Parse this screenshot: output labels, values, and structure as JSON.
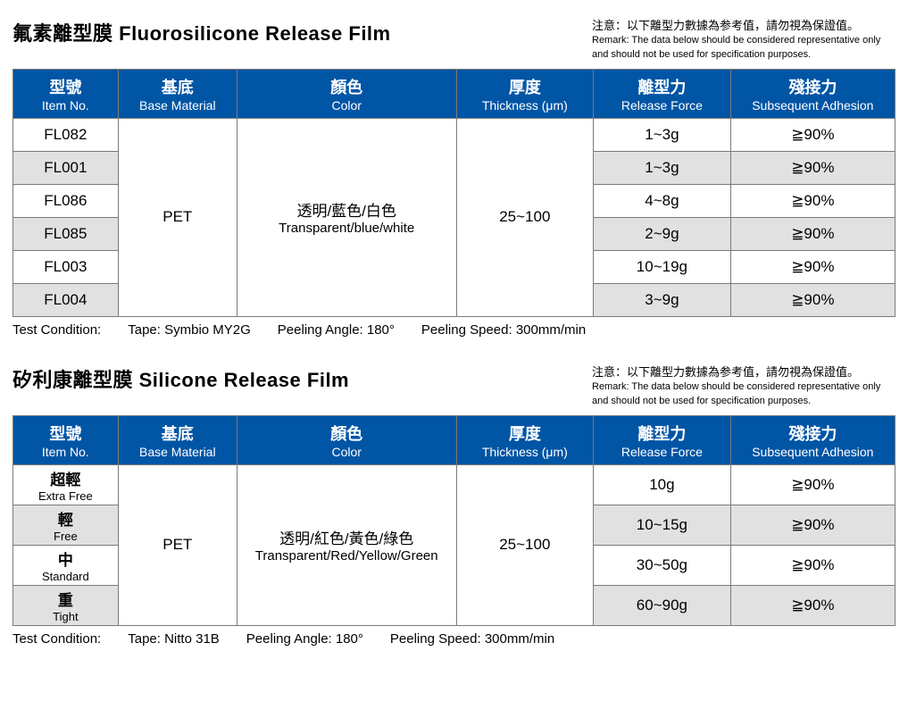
{
  "sections": [
    {
      "title_zh": "氟素離型膜",
      "title_en": "Fluorosilicone Release Film",
      "remark_zh": "注意：以下離型力數據為参考值，請勿視為保證值。",
      "remark_en": "Remark: The data below should be considered representative only and should not be used for specification purposes.",
      "columns": [
        {
          "zh": "型號",
          "en": "Item No."
        },
        {
          "zh": "基底",
          "en": "Base Material"
        },
        {
          "zh": "顏色",
          "en": "Color"
        },
        {
          "zh": "厚度",
          "en": "Thickness (μm)"
        },
        {
          "zh": "離型力",
          "en": "Release Force"
        },
        {
          "zh": "殘接力",
          "en": "Subsequent Adhesion"
        }
      ],
      "base_material": "PET",
      "color_zh": "透明/藍色/白色",
      "color_en": "Transparent/blue/white",
      "thickness": "25~100",
      "rows": [
        {
          "item": "FL082",
          "force": "1~3g",
          "adh": "≧90%",
          "alt": false
        },
        {
          "item": "FL001",
          "force": "1~3g",
          "adh": "≧90%",
          "alt": true
        },
        {
          "item": "FL086",
          "force": "4~8g",
          "adh": "≧90%",
          "alt": false
        },
        {
          "item": "FL085",
          "force": "2~9g",
          "adh": "≧90%",
          "alt": true
        },
        {
          "item": "FL003",
          "force": "10~19g",
          "adh": "≧90%",
          "alt": false
        },
        {
          "item": "FL004",
          "force": "3~9g",
          "adh": "≧90%",
          "alt": true
        }
      ],
      "footer": {
        "label": "Test Condition:",
        "tape": "Tape: Symbio MY2G",
        "angle": "Peeling Angle: 180°",
        "speed": "Peeling Speed: 300mm/min"
      }
    },
    {
      "title_zh": "矽利康離型膜",
      "title_en": "Silicone Release Film",
      "remark_zh": "注意：以下離型力數據為参考值，請勿視為保證值。",
      "remark_en": "Remark: The data below should be considered representative only and should not be used for specification purposes.",
      "columns": [
        {
          "zh": "型號",
          "en": "Item No."
        },
        {
          "zh": "基底",
          "en": "Base Material"
        },
        {
          "zh": "顏色",
          "en": "Color"
        },
        {
          "zh": "厚度",
          "en": "Thickness (μm)"
        },
        {
          "zh": "離型力",
          "en": "Release Force"
        },
        {
          "zh": "殘接力",
          "en": "Subsequent Adhesion"
        }
      ],
      "base_material": "PET",
      "color_zh": "透明/紅色/黃色/綠色",
      "color_en": "Transparent/Red/Yellow/Green",
      "thickness": "25~100",
      "rows": [
        {
          "item_zh": "超輕",
          "item_en": "Extra Free",
          "force": "10g",
          "adh": "≧90%",
          "alt": false
        },
        {
          "item_zh": "輕",
          "item_en": "Free",
          "force": "10~15g",
          "adh": "≧90%",
          "alt": true
        },
        {
          "item_zh": "中",
          "item_en": "Standard",
          "force": "30~50g",
          "adh": "≧90%",
          "alt": false
        },
        {
          "item_zh": "重",
          "item_en": "Tight",
          "force": "60~90g",
          "adh": "≧90%",
          "alt": true
        }
      ],
      "footer": {
        "label": "Test Condition:",
        "tape": "Tape: Nitto 31B",
        "angle": "Peeling Angle: 180°",
        "speed": "Peeling Speed: 300mm/min"
      }
    }
  ]
}
